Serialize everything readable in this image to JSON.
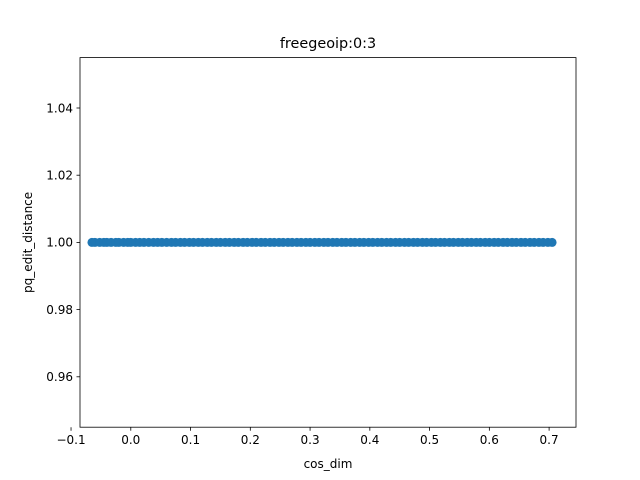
{
  "chart_data": {
    "type": "scatter",
    "title": "freegeoip:0:3",
    "xlabel": "cos_dim",
    "ylabel": "pq_edit_distance",
    "xlim": [
      -0.085,
      0.745
    ],
    "ylim": [
      0.945,
      1.055
    ],
    "xticks": [
      -0.1,
      0.0,
      0.1,
      0.2,
      0.3,
      0.4,
      0.5,
      0.6,
      0.7
    ],
    "xtick_labels": [
      "−0.1",
      "0.0",
      "0.1",
      "0.2",
      "0.3",
      "0.4",
      "0.5",
      "0.6",
      "0.7"
    ],
    "yticks": [
      0.96,
      0.98,
      1.0,
      1.02,
      1.04
    ],
    "ytick_labels": [
      "0.96",
      "0.98",
      "1.00",
      "1.02",
      "1.04"
    ],
    "grid": false,
    "color": "#1f77b4",
    "series": [
      {
        "x": [
          -0.065,
          -0.06,
          -0.052,
          -0.045,
          -0.04,
          -0.033,
          -0.025,
          -0.02,
          -0.012,
          -0.005,
          0.0,
          0.008,
          0.015,
          0.022,
          0.03,
          0.038,
          0.045,
          0.052,
          0.06,
          0.068,
          0.075,
          0.083,
          0.09,
          0.098,
          0.105,
          0.113,
          0.12,
          0.128,
          0.135,
          0.143,
          0.15,
          0.158,
          0.165,
          0.173,
          0.18,
          0.188,
          0.195,
          0.203,
          0.21,
          0.218,
          0.225,
          0.233,
          0.24,
          0.248,
          0.255,
          0.263,
          0.27,
          0.278,
          0.285,
          0.293,
          0.3,
          0.308,
          0.315,
          0.323,
          0.33,
          0.338,
          0.345,
          0.353,
          0.36,
          0.368,
          0.375,
          0.383,
          0.39,
          0.398,
          0.405,
          0.413,
          0.42,
          0.428,
          0.435,
          0.443,
          0.45,
          0.458,
          0.465,
          0.473,
          0.48,
          0.488,
          0.495,
          0.503,
          0.51,
          0.518,
          0.525,
          0.533,
          0.54,
          0.548,
          0.555,
          0.563,
          0.57,
          0.578,
          0.585,
          0.593,
          0.6,
          0.608,
          0.615,
          0.623,
          0.63,
          0.638,
          0.645,
          0.653,
          0.66,
          0.668,
          0.675,
          0.683,
          0.69,
          0.698,
          0.705
        ],
        "y": [
          1.0,
          1.0,
          1.0,
          1.0,
          1.0,
          1.0,
          1.0,
          1.0,
          1.0,
          1.0,
          1.0,
          1.0,
          1.0,
          1.0,
          1.0,
          1.0,
          1.0,
          1.0,
          1.0,
          1.0,
          1.0,
          1.0,
          1.0,
          1.0,
          1.0,
          1.0,
          1.0,
          1.0,
          1.0,
          1.0,
          1.0,
          1.0,
          1.0,
          1.0,
          1.0,
          1.0,
          1.0,
          1.0,
          1.0,
          1.0,
          1.0,
          1.0,
          1.0,
          1.0,
          1.0,
          1.0,
          1.0,
          1.0,
          1.0,
          1.0,
          1.0,
          1.0,
          1.0,
          1.0,
          1.0,
          1.0,
          1.0,
          1.0,
          1.0,
          1.0,
          1.0,
          1.0,
          1.0,
          1.0,
          1.0,
          1.0,
          1.0,
          1.0,
          1.0,
          1.0,
          1.0,
          1.0,
          1.0,
          1.0,
          1.0,
          1.0,
          1.0,
          1.0,
          1.0,
          1.0,
          1.0,
          1.0,
          1.0,
          1.0,
          1.0,
          1.0,
          1.0,
          1.0,
          1.0,
          1.0,
          1.0,
          1.0,
          1.0,
          1.0,
          1.0,
          1.0,
          1.0,
          1.0,
          1.0,
          1.0,
          1.0,
          1.0,
          1.0,
          1.0,
          1.0
        ]
      }
    ]
  }
}
